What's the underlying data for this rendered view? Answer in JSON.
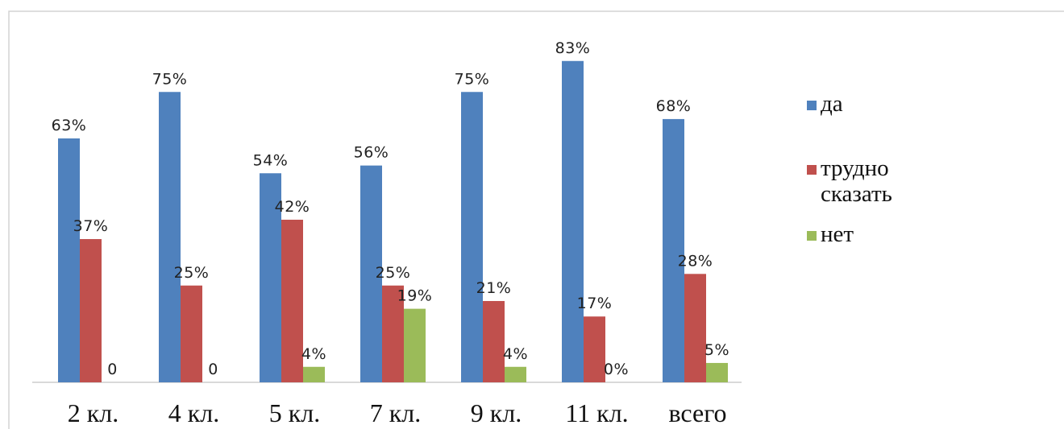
{
  "chart_data": {
    "type": "bar",
    "title": "",
    "xlabel": "",
    "ylabel": "",
    "ylim": [
      0,
      100
    ],
    "grid": false,
    "legend_position": "right",
    "categories": [
      "2 кл.",
      "4 кл.",
      "5 кл.",
      "7 кл.",
      "9 кл.",
      "11 кл.",
      "всего"
    ],
    "series": [
      {
        "name": "да",
        "color": "#4F81BD",
        "values": [
          63,
          75,
          54,
          56,
          75,
          83,
          68
        ],
        "labels": [
          "63%",
          "75%",
          "54%",
          "56%",
          "75%",
          "83%",
          "68%"
        ]
      },
      {
        "name": "трудно сказать",
        "legend_lines": [
          "трудно",
          "сказать"
        ],
        "color": "#C0504D",
        "values": [
          37,
          25,
          42,
          25,
          21,
          17,
          28
        ],
        "labels": [
          "37%",
          "25%",
          "42%",
          "25%",
          "21%",
          "17%",
          "28%"
        ]
      },
      {
        "name": "нет",
        "color": "#9BBB59",
        "values": [
          0,
          0,
          4,
          19,
          4,
          0,
          5
        ],
        "labels": [
          "0",
          "0",
          "4%",
          "19%",
          "4%",
          "0%",
          "5%"
        ]
      }
    ]
  }
}
